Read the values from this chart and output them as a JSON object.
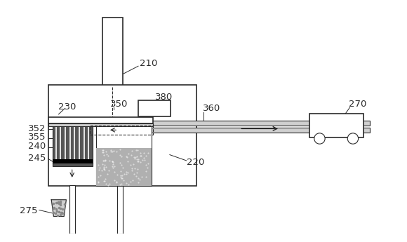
{
  "bg_color": "#ffffff",
  "line_color": "#2a2a2a",
  "gray_fill": "#b0b0b0",
  "light_gray": "#d0d0d0",
  "dark_gray": "#555555",
  "med_gray": "#888888",
  "font_size": 9.5,
  "lw_main": 1.2,
  "lw_thin": 0.8
}
